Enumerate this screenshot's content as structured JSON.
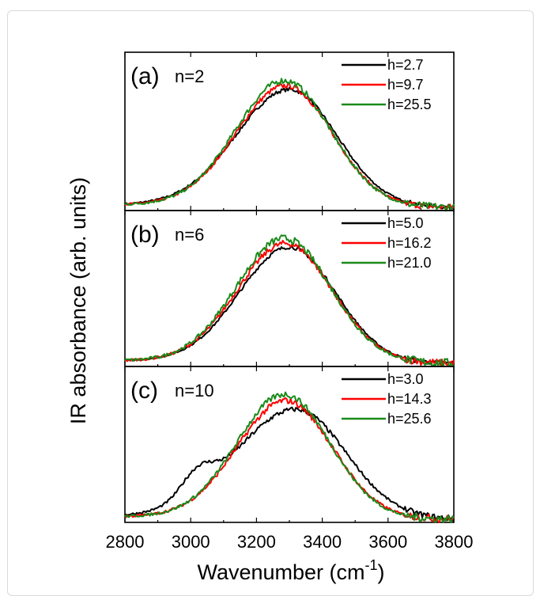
{
  "chart_data": {
    "type": "line",
    "xlabel": "Wavenumber (cm",
    "xlabel_sup": "-1",
    "xlabel_tail": ")",
    "ylabel": "IR absorbance (arb. units)",
    "xlim": [
      2800,
      3800
    ],
    "x_ticks": [
      "2800",
      "3000",
      "3200",
      "3400",
      "3600",
      "3800"
    ],
    "colors": {
      "black": "#000000",
      "red": "#ff0000",
      "green": "#1a8a1a"
    },
    "panels": [
      {
        "tag": "(a)",
        "label": "n=2",
        "series": [
          {
            "name": "h=2.7",
            "color": "black",
            "peak": 0.93,
            "center": 3300,
            "wl": 230,
            "wr": 205,
            "shoulder": 0.0,
            "noise": 0.015
          },
          {
            "name": "h=9.7",
            "color": "red",
            "peak": 0.96,
            "center": 3290,
            "wl": 215,
            "wr": 200,
            "shoulder": 0.0,
            "noise": 0.02
          },
          {
            "name": "h=25.5",
            "color": "green",
            "peak": 1.0,
            "center": 3285,
            "wl": 210,
            "wr": 200,
            "shoulder": 0.0,
            "noise": 0.025
          }
        ]
      },
      {
        "tag": "(b)",
        "label": "n=6",
        "series": [
          {
            "name": "h=5.0",
            "color": "black",
            "peak": 0.93,
            "center": 3300,
            "wl": 215,
            "wr": 200,
            "shoulder": 0.0,
            "noise": 0.015
          },
          {
            "name": "h=16.2",
            "color": "red",
            "peak": 0.96,
            "center": 3290,
            "wl": 210,
            "wr": 200,
            "shoulder": 0.0,
            "noise": 0.025
          },
          {
            "name": "h=21.0",
            "color": "green",
            "peak": 1.0,
            "center": 3285,
            "wl": 208,
            "wr": 200,
            "shoulder": 0.0,
            "noise": 0.03
          }
        ]
      },
      {
        "tag": "(c)",
        "label": "n=10",
        "series": [
          {
            "name": "h=3.0",
            "color": "black",
            "peak": 0.88,
            "center": 3320,
            "wl": 260,
            "wr": 215,
            "shoulder": 0.18,
            "noise": 0.02
          },
          {
            "name": "h=14.3",
            "color": "red",
            "peak": 0.95,
            "center": 3290,
            "wl": 210,
            "wr": 200,
            "shoulder": 0.0,
            "noise": 0.025
          },
          {
            "name": "h=25.6",
            "color": "green",
            "peak": 1.0,
            "center": 3285,
            "wl": 205,
            "wr": 198,
            "shoulder": 0.0,
            "noise": 0.025
          }
        ]
      }
    ]
  }
}
